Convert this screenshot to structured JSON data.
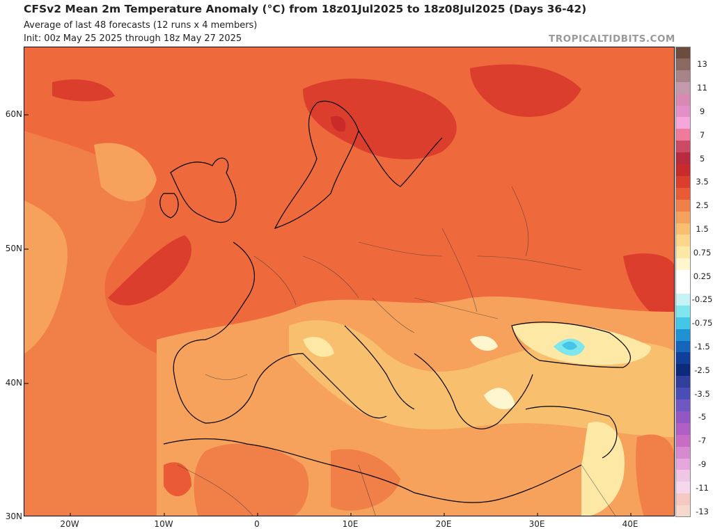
{
  "header": {
    "title": "CFSv2 Mean 2m Temperature Anomaly (°C) from 18z01Jul2025 to 18z08Jul2025 (Days 36-42)",
    "subtitle": "Average of last 48 forecasts (12 runs x 4 members)",
    "init": "Init: 00z May 25 2025 through 18z May 27 2025",
    "credit": "TROPICALTIDBITS.COM"
  },
  "map": {
    "region": "Europe",
    "lat_labels": [
      "60N",
      "50N",
      "40N",
      "30N"
    ],
    "lon_labels": [
      "20W",
      "10W",
      "0",
      "10E",
      "20E",
      "30E",
      "40E"
    ]
  },
  "colorbar": {
    "labels": [
      "13",
      "11",
      "9",
      "7",
      "5",
      "3.5",
      "2.5",
      "1.5",
      "0.75",
      "0.25",
      "-0.25",
      "-0.75",
      "-1.5",
      "-2.5",
      "-3.5",
      "-5",
      "-7",
      "-9",
      "-11",
      "-13"
    ],
    "colors": [
      "#6b4d3f",
      "#8a6a60",
      "#a7838a",
      "#c39aaa",
      "#d78bb4",
      "#e58fc8",
      "#f5a7dc",
      "#f07a9c",
      "#cc4a64",
      "#b82b3f",
      "#c92a2a",
      "#dc3e2e",
      "#ea5a34",
      "#f07f48",
      "#f6a15c",
      "#f8bf6e",
      "#fcd68a",
      "#fde9a5",
      "#fdf6cf",
      "#ffffff",
      "#ffffff",
      "#c8f3f6",
      "#7fe6ee",
      "#44c7e6",
      "#1f92d6",
      "#1565bd",
      "#0f3f9b",
      "#0b2a7c",
      "#2f3f9a",
      "#4a4cb8",
      "#7057c4",
      "#9257c2",
      "#b060c4",
      "#c86cc4",
      "#d88ad0",
      "#e6a8dc",
      "#f0c6e6",
      "#f5d8ec",
      "#f6c8c4",
      "#f7d8cc"
    ]
  }
}
